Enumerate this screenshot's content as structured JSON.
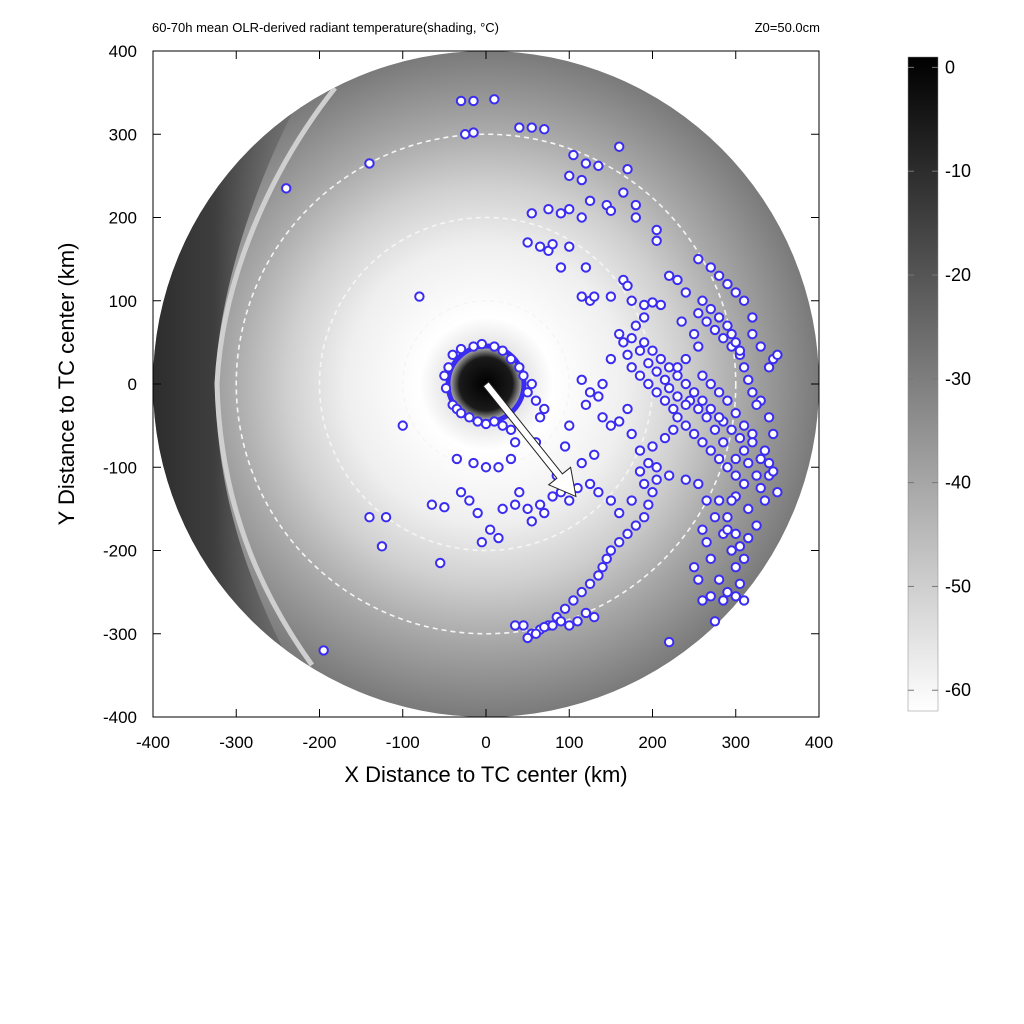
{
  "header": {
    "title": "60-70h mean OLR-derived radiant temperature(shading, °C)",
    "z0": "Z0=50.0cm"
  },
  "chart_data": {
    "type": "heatmap",
    "title": "60-70h mean OLR-derived radiant temperature(shading, °C)",
    "annotation": "Z0=50.0cm",
    "xlabel": "X Distance to TC center (km)",
    "ylabel": "Y Distance to TC center (km)",
    "xlim": [
      -400,
      400
    ],
    "ylim": [
      -400,
      400
    ],
    "x_ticks": [
      -400,
      -300,
      -200,
      -100,
      0,
      100,
      200,
      300,
      400
    ],
    "y_ticks": [
      -400,
      -300,
      -200,
      -100,
      0,
      100,
      200,
      300,
      400
    ],
    "x_tick_labels": [
      "-400",
      "-300",
      "-200",
      "-100",
      "0",
      "100",
      "200",
      "300",
      "400"
    ],
    "y_tick_labels": [
      "-400",
      "-300",
      "-200",
      "-100",
      "0",
      "100",
      "200",
      "300",
      "400"
    ],
    "colorbar": {
      "min": -62,
      "max": 1,
      "ticks": [
        0,
        -10,
        -20,
        -30,
        -40,
        -50,
        -60
      ],
      "tick_labels": [
        "0",
        "-10",
        "-20",
        "-30",
        "-40",
        "-50",
        "-60"
      ],
      "colormap": "gray",
      "low_color": "#ffffff",
      "high_color": "#000000"
    },
    "domain_radius_km": 400,
    "range_rings_km": [
      100,
      200,
      300
    ],
    "motion_vector": {
      "x0": 0,
      "y0": 0,
      "x1": 108,
      "y1": -135,
      "color": "#ffffff"
    },
    "cell_marker_color": "#3a2cf0",
    "cells": [
      [
        -30,
        340
      ],
      [
        -15,
        340
      ],
      [
        10,
        342
      ],
      [
        -25,
        300
      ],
      [
        -15,
        302
      ],
      [
        40,
        308
      ],
      [
        55,
        308
      ],
      [
        70,
        306
      ],
      [
        105,
        275
      ],
      [
        120,
        265
      ],
      [
        135,
        262
      ],
      [
        160,
        285
      ],
      [
        -140,
        265
      ],
      [
        -240,
        235
      ],
      [
        -80,
        105
      ],
      [
        100,
        250
      ],
      [
        115,
        245
      ],
      [
        125,
        220
      ],
      [
        145,
        215
      ],
      [
        150,
        208
      ],
      [
        165,
        230
      ],
      [
        170,
        258
      ],
      [
        180,
        200
      ],
      [
        180,
        215
      ],
      [
        55,
        205
      ],
      [
        75,
        210
      ],
      [
        90,
        205
      ],
      [
        100,
        210
      ],
      [
        115,
        200
      ],
      [
        205,
        185
      ],
      [
        205,
        172
      ],
      [
        65,
        165
      ],
      [
        75,
        160
      ],
      [
        80,
        168
      ],
      [
        100,
        165
      ],
      [
        90,
        140
      ],
      [
        120,
        140
      ],
      [
        115,
        105
      ],
      [
        125,
        100
      ],
      [
        130,
        105
      ],
      [
        150,
        105
      ],
      [
        50,
        170
      ],
      [
        165,
        125
      ],
      [
        170,
        118
      ],
      [
        175,
        100
      ],
      [
        190,
        95
      ],
      [
        200,
        98
      ],
      [
        210,
        95
      ],
      [
        255,
        150
      ],
      [
        270,
        140
      ],
      [
        280,
        130
      ],
      [
        290,
        120
      ],
      [
        300,
        110
      ],
      [
        310,
        100
      ],
      [
        320,
        80
      ],
      [
        320,
        60
      ],
      [
        330,
        45
      ],
      [
        345,
        30
      ],
      [
        350,
        35
      ],
      [
        340,
        20
      ],
      [
        235,
        75
      ],
      [
        250,
        60
      ],
      [
        255,
        45
      ],
      [
        240,
        30
      ],
      [
        230,
        20
      ],
      [
        260,
        10
      ],
      [
        270,
        0
      ],
      [
        280,
        -10
      ],
      [
        290,
        -20
      ],
      [
        300,
        -35
      ],
      [
        310,
        -50
      ],
      [
        320,
        -70
      ],
      [
        330,
        -90
      ],
      [
        340,
        -110
      ],
      [
        350,
        -130
      ],
      [
        330,
        -125
      ],
      [
        310,
        -120
      ],
      [
        300,
        -110
      ],
      [
        290,
        -100
      ],
      [
        280,
        -90
      ],
      [
        270,
        -80
      ],
      [
        260,
        -70
      ],
      [
        250,
        -60
      ],
      [
        240,
        -50
      ],
      [
        230,
        -40
      ],
      [
        225,
        -30
      ],
      [
        215,
        -20
      ],
      [
        205,
        -10
      ],
      [
        195,
        0
      ],
      [
        185,
        10
      ],
      [
        175,
        20
      ],
      [
        170,
        35
      ],
      [
        165,
        50
      ],
      [
        160,
        60
      ],
      [
        150,
        30
      ],
      [
        140,
        0
      ],
      [
        135,
        -15
      ],
      [
        125,
        -10
      ],
      [
        120,
        -25
      ],
      [
        115,
        5
      ],
      [
        140,
        -40
      ],
      [
        150,
        -50
      ],
      [
        160,
        -45
      ],
      [
        170,
        -30
      ],
      [
        175,
        -60
      ],
      [
        185,
        -80
      ],
      [
        195,
        -95
      ],
      [
        205,
        -100
      ],
      [
        220,
        -110
      ],
      [
        240,
        -115
      ],
      [
        255,
        -120
      ],
      [
        265,
        -140
      ],
      [
        275,
        -160
      ],
      [
        285,
        -180
      ],
      [
        295,
        -200
      ],
      [
        300,
        -220
      ],
      [
        305,
        -240
      ],
      [
        310,
        -260
      ],
      [
        290,
        -250
      ],
      [
        280,
        -235
      ],
      [
        270,
        -210
      ],
      [
        265,
        -190
      ],
      [
        260,
        -175
      ],
      [
        300,
        -135
      ],
      [
        315,
        -150
      ],
      [
        325,
        -170
      ],
      [
        315,
        -185
      ],
      [
        305,
        -195
      ],
      [
        290,
        -160
      ],
      [
        280,
        -140
      ],
      [
        300,
        -90
      ],
      [
        310,
        -80
      ],
      [
        320,
        -60
      ],
      [
        305,
        -65
      ],
      [
        295,
        -55
      ],
      [
        285,
        -45
      ],
      [
        330,
        -20
      ],
      [
        340,
        -40
      ],
      [
        345,
        -60
      ],
      [
        335,
        -80
      ],
      [
        205,
        -115
      ],
      [
        200,
        -130
      ],
      [
        195,
        -145
      ],
      [
        190,
        -160
      ],
      [
        180,
        -170
      ],
      [
        170,
        -180
      ],
      [
        160,
        -190
      ],
      [
        150,
        -200
      ],
      [
        145,
        -210
      ],
      [
        140,
        -220
      ],
      [
        135,
        -230
      ],
      [
        125,
        -240
      ],
      [
        115,
        -250
      ],
      [
        105,
        -260
      ],
      [
        95,
        -270
      ],
      [
        85,
        -280
      ],
      [
        75,
        -290
      ],
      [
        65,
        -295
      ],
      [
        55,
        -300
      ],
      [
        45,
        -290
      ],
      [
        130,
        -280
      ],
      [
        120,
        -275
      ],
      [
        110,
        -285
      ],
      [
        100,
        -290
      ],
      [
        90,
        -285
      ],
      [
        80,
        -290
      ],
      [
        70,
        -292
      ],
      [
        60,
        -300
      ],
      [
        50,
        -305
      ],
      [
        35,
        -290
      ],
      [
        220,
        -310
      ],
      [
        275,
        -285
      ],
      [
        -195,
        -320
      ],
      [
        -140,
        -160
      ],
      [
        -125,
        -195
      ],
      [
        -120,
        -160
      ],
      [
        -100,
        -50
      ],
      [
        -65,
        -145
      ],
      [
        -55,
        -215
      ],
      [
        -50,
        -148
      ],
      [
        -40,
        -25
      ],
      [
        -35,
        -30
      ],
      [
        -30,
        -35
      ],
      [
        -20,
        -40
      ],
      [
        -10,
        -45
      ],
      [
        0,
        -48
      ],
      [
        10,
        -45
      ],
      [
        20,
        -50
      ],
      [
        30,
        -55
      ],
      [
        35,
        -70
      ],
      [
        30,
        -90
      ],
      [
        15,
        -100
      ],
      [
        0,
        -100
      ],
      [
        -15,
        -95
      ],
      [
        -35,
        -90
      ],
      [
        -30,
        -130
      ],
      [
        -20,
        -140
      ],
      [
        -10,
        -155
      ],
      [
        5,
        -175
      ],
      [
        15,
        -185
      ],
      [
        -5,
        -190
      ],
      [
        20,
        -150
      ],
      [
        35,
        -145
      ],
      [
        50,
        -150
      ],
      [
        65,
        -145
      ],
      [
        80,
        -135
      ],
      [
        90,
        -130
      ],
      [
        100,
        -140
      ],
      [
        110,
        -125
      ],
      [
        70,
        -155
      ],
      [
        55,
        -165
      ],
      [
        40,
        -130
      ],
      [
        60,
        -70
      ],
      [
        65,
        -40
      ],
      [
        70,
        -30
      ],
      [
        60,
        -20
      ],
      [
        50,
        -10
      ],
      [
        55,
        0
      ],
      [
        45,
        10
      ],
      [
        40,
        20
      ],
      [
        30,
        30
      ],
      [
        20,
        40
      ],
      [
        10,
        45
      ],
      [
        -5,
        48
      ],
      [
        -15,
        45
      ],
      [
        -30,
        42
      ],
      [
        -40,
        35
      ],
      [
        -45,
        20
      ],
      [
        -50,
        10
      ],
      [
        -48,
        -5
      ],
      [
        100,
        -50
      ],
      [
        95,
        -75
      ],
      [
        130,
        -85
      ],
      [
        115,
        -95
      ],
      [
        85,
        -110
      ],
      [
        125,
        -120
      ],
      [
        135,
        -130
      ],
      [
        150,
        -140
      ],
      [
        160,
        -155
      ],
      [
        175,
        -140
      ],
      [
        190,
        -120
      ],
      [
        185,
        -105
      ],
      [
        200,
        -75
      ],
      [
        215,
        -65
      ],
      [
        225,
        -55
      ],
      [
        245,
        -20
      ],
      [
        255,
        -30
      ],
      [
        265,
        -40
      ],
      [
        275,
        -55
      ],
      [
        285,
        -70
      ],
      [
        190,
        50
      ],
      [
        200,
        40
      ],
      [
        210,
        30
      ],
      [
        220,
        20
      ],
      [
        230,
        10
      ],
      [
        240,
        0
      ],
      [
        250,
        -10
      ],
      [
        260,
        -20
      ],
      [
        270,
        -30
      ],
      [
        280,
        -40
      ],
      [
        255,
        85
      ],
      [
        265,
        75
      ],
      [
        275,
        65
      ],
      [
        285,
        55
      ],
      [
        295,
        45
      ],
      [
        305,
        35
      ],
      [
        310,
        20
      ],
      [
        315,
        5
      ],
      [
        320,
        -10
      ],
      [
        325,
        -25
      ],
      [
        220,
        130
      ],
      [
        230,
        125
      ],
      [
        240,
        110
      ],
      [
        260,
        100
      ],
      [
        270,
        90
      ],
      [
        280,
        80
      ],
      [
        290,
        70
      ],
      [
        295,
        60
      ],
      [
        300,
        50
      ],
      [
        305,
        40
      ],
      [
        190,
        80
      ],
      [
        180,
        70
      ],
      [
        175,
        55
      ],
      [
        185,
        40
      ],
      [
        195,
        25
      ],
      [
        205,
        15
      ],
      [
        215,
        5
      ],
      [
        220,
        -5
      ],
      [
        230,
        -15
      ],
      [
        240,
        -25
      ],
      [
        340,
        -95
      ],
      [
        345,
        -105
      ],
      [
        335,
        -140
      ],
      [
        325,
        -110
      ],
      [
        315,
        -95
      ],
      [
        295,
        -140
      ],
      [
        290,
        -175
      ],
      [
        300,
        -180
      ],
      [
        310,
        -210
      ],
      [
        300,
        -255
      ],
      [
        285,
        -260
      ],
      [
        270,
        -255
      ],
      [
        260,
        -260
      ],
      [
        255,
        -235
      ],
      [
        250,
        -220
      ]
    ]
  }
}
